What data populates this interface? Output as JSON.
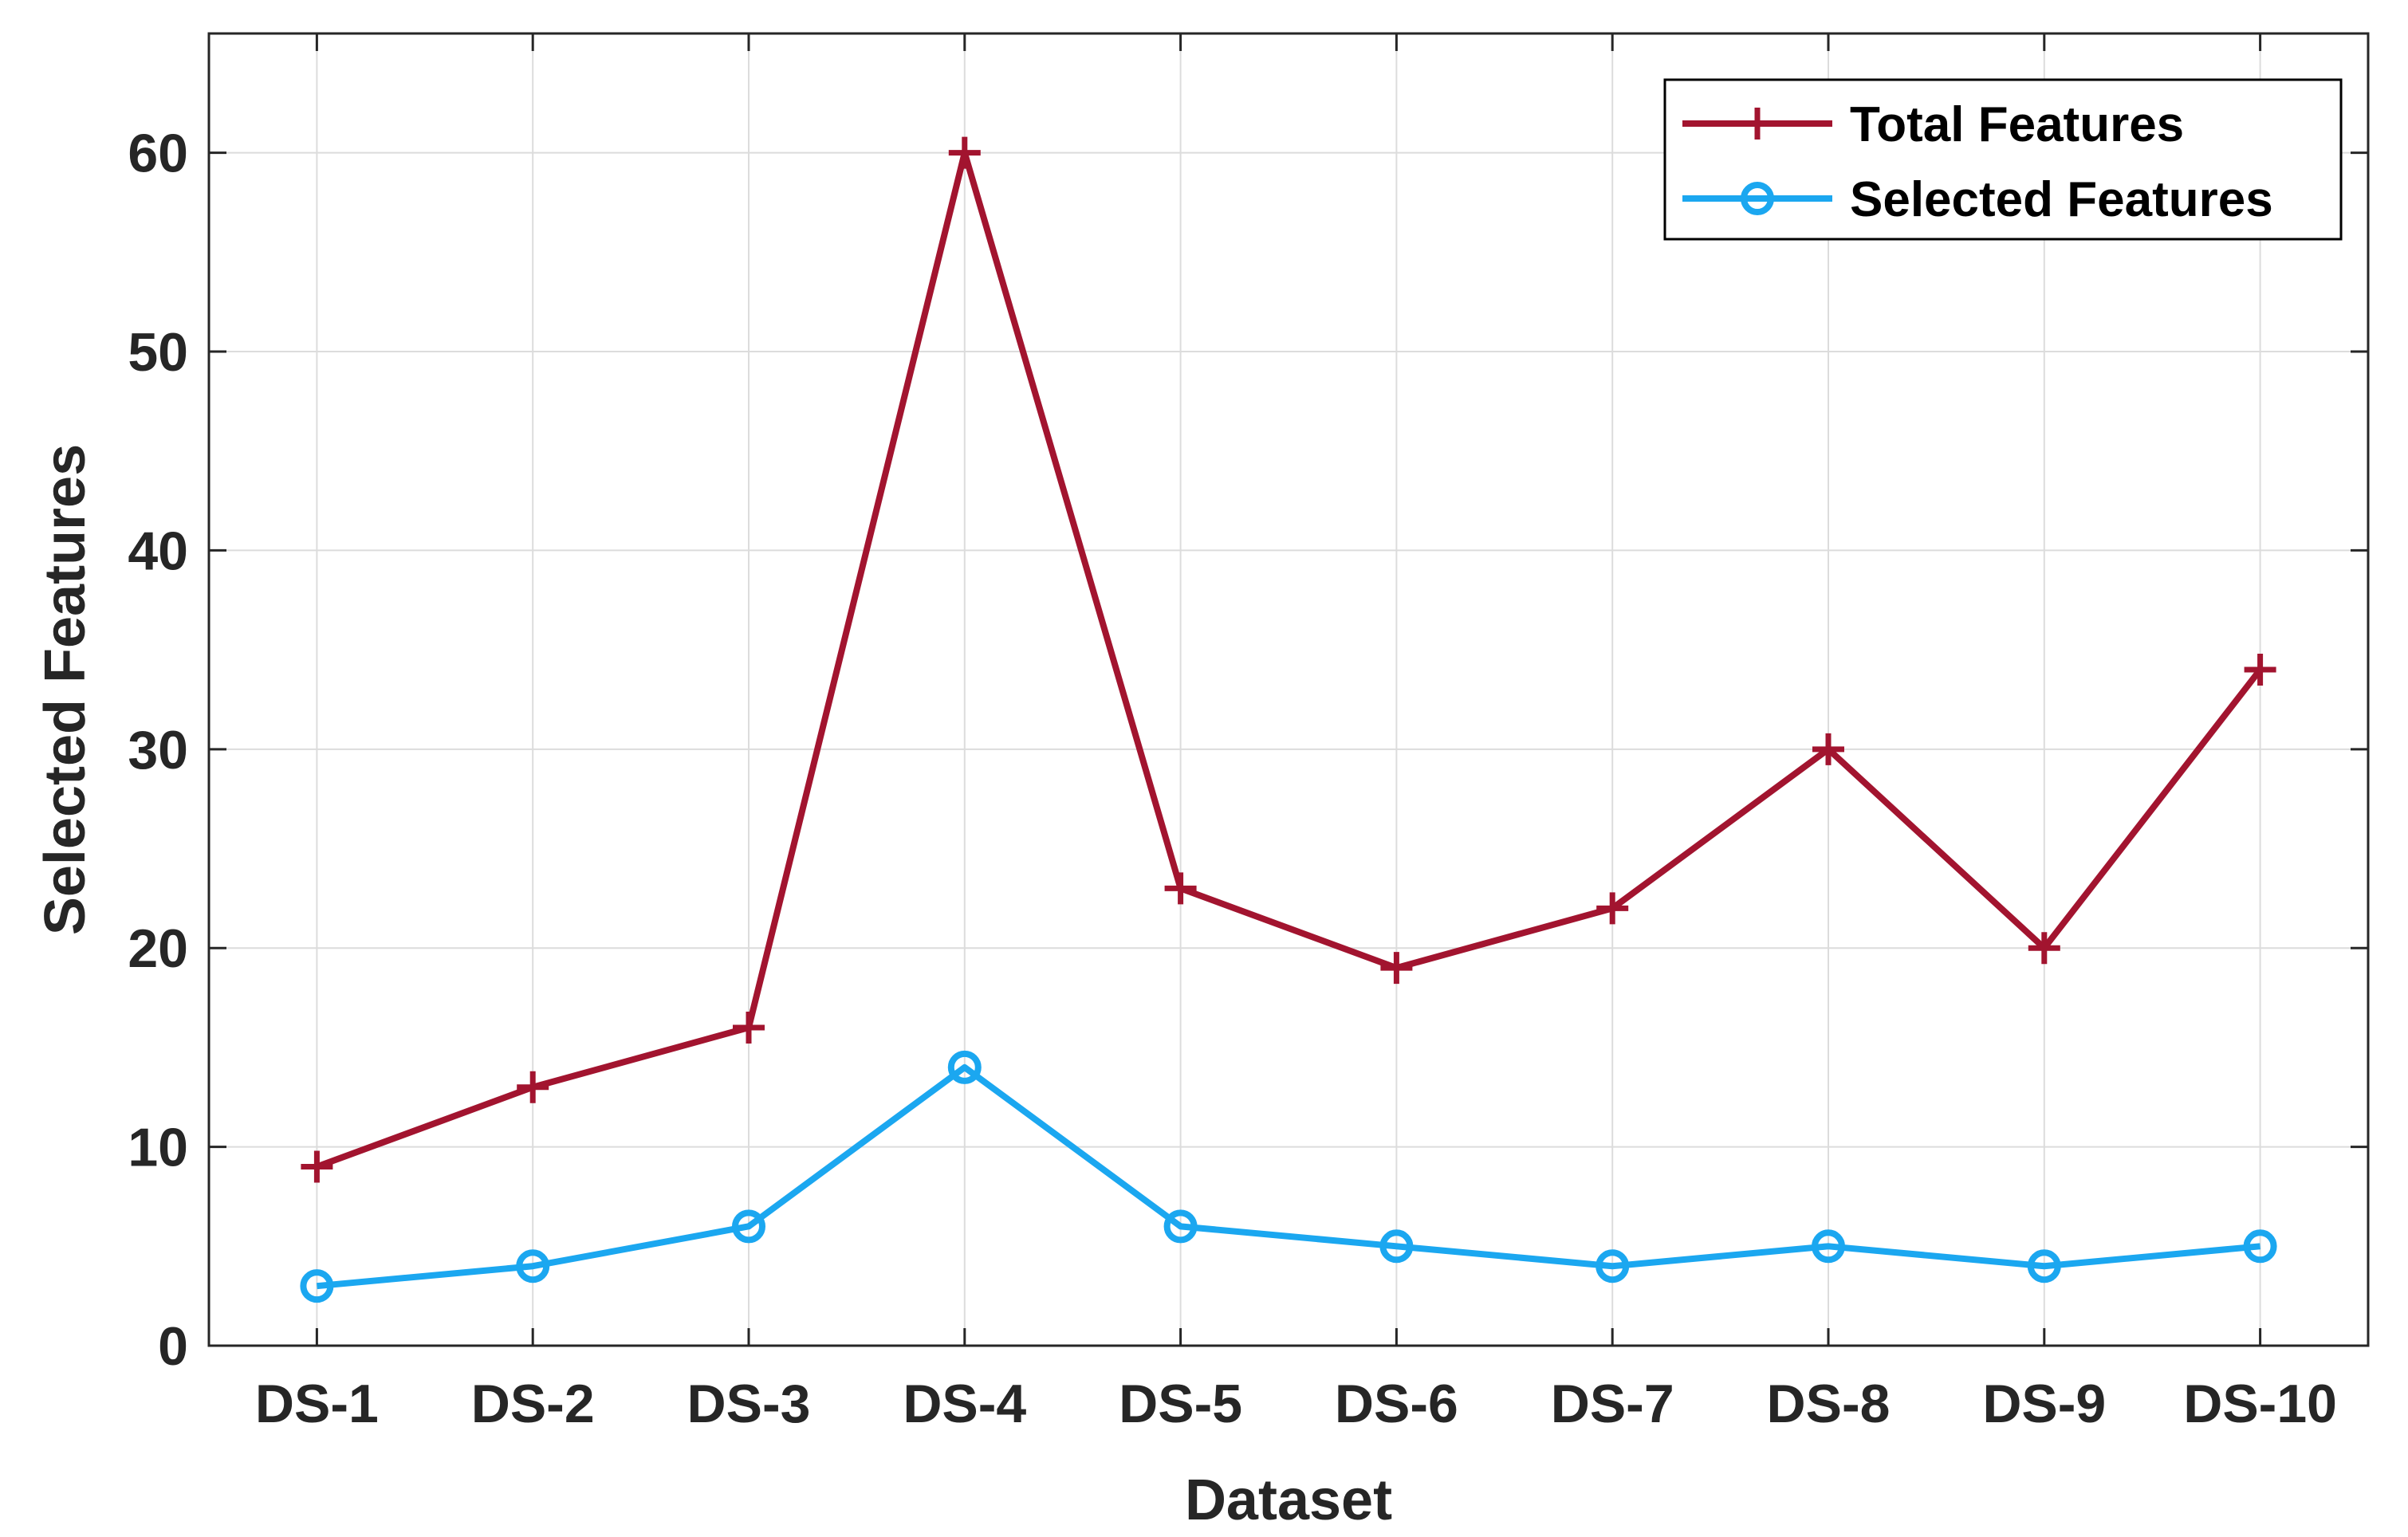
{
  "chart_data": {
    "type": "line",
    "categories": [
      "DS-1",
      "DS-2",
      "DS-3",
      "DS-4",
      "DS-5",
      "DS-6",
      "DS-7",
      "DS-8",
      "DS-9",
      "DS-10"
    ],
    "series": [
      {
        "name": "Total Features",
        "values": [
          9,
          13,
          16,
          60,
          23,
          19,
          22,
          30,
          20,
          34
        ],
        "color": "#A2142F",
        "marker": "plus"
      },
      {
        "name": "Selected Features",
        "values": [
          3,
          4,
          6,
          14,
          6,
          5,
          4,
          5,
          4,
          5
        ],
        "color": "#1BA7F0",
        "marker": "circle"
      }
    ],
    "xlabel": "Dataset",
    "ylabel": "Selected Features",
    "ylim": [
      0,
      66
    ],
    "yticks": [
      0,
      10,
      20,
      30,
      40,
      50,
      60
    ],
    "grid": true,
    "legend_position": "top-right"
  }
}
